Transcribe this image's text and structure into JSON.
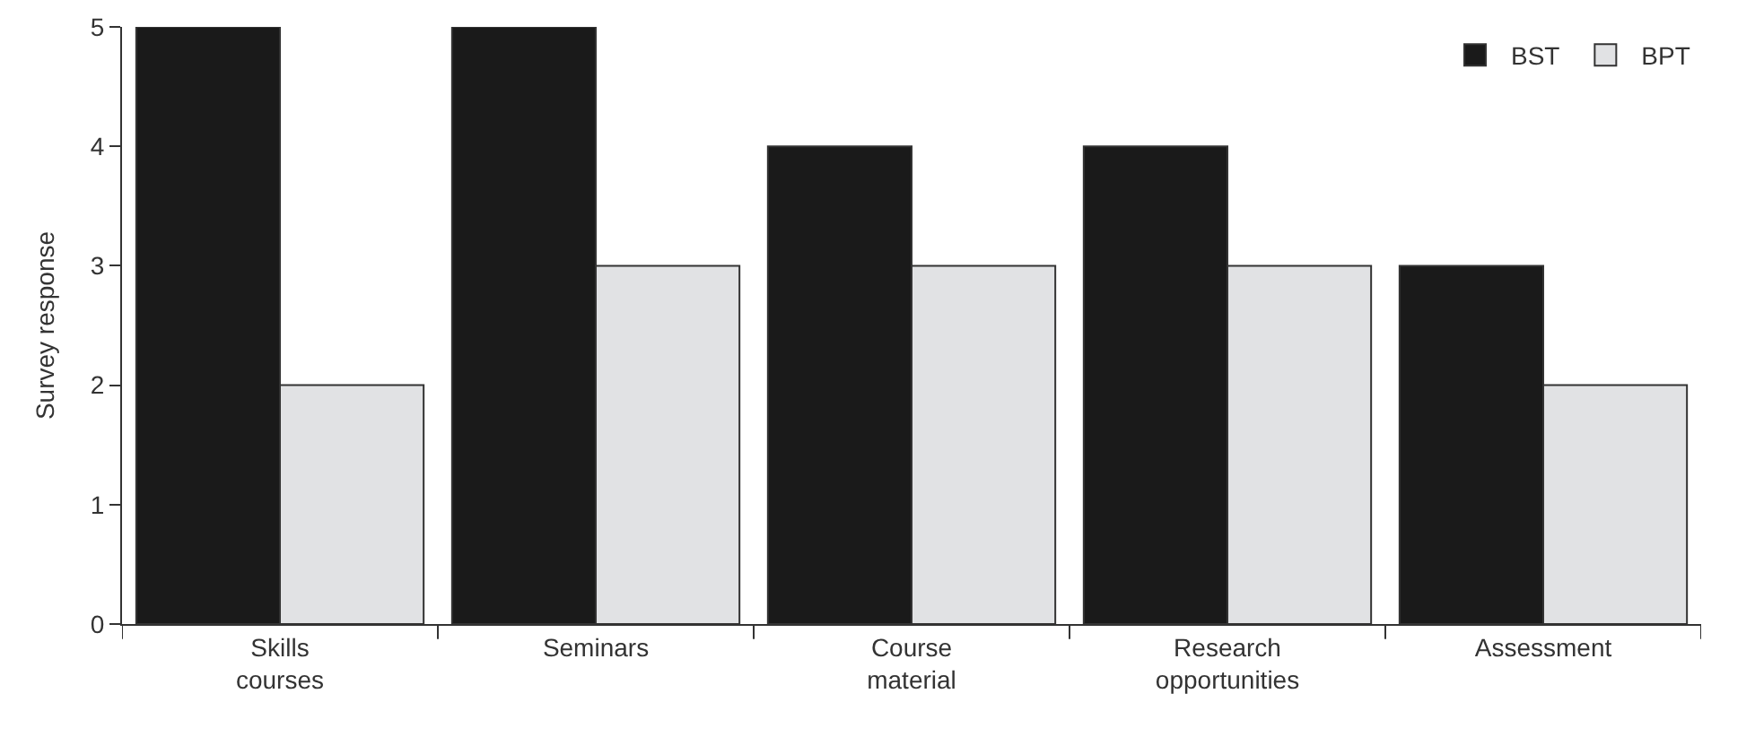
{
  "chart_data": {
    "type": "bar",
    "ylabel": "Survey response",
    "categories": [
      "Skills courses",
      "Seminars",
      "Course material",
      "Research opportunities",
      "Assessment"
    ],
    "series": [
      {
        "name": "BST",
        "color": "#1a1a1a",
        "values": [
          5,
          5,
          4,
          4,
          3
        ]
      },
      {
        "name": "BPT",
        "color": "#e1e2e4",
        "values": [
          2,
          3,
          3,
          3,
          2
        ]
      }
    ],
    "ylim": [
      0,
      5
    ],
    "yticks": [
      0,
      1,
      2,
      3,
      4,
      5
    ],
    "grid": false,
    "legend": "top right"
  }
}
